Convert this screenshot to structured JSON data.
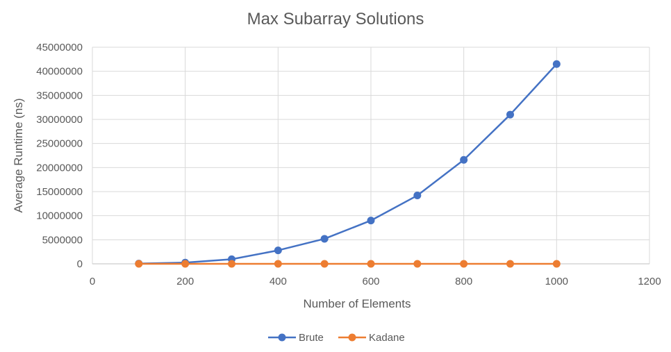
{
  "chart_data": {
    "type": "scatter",
    "title": "Max Subarray Solutions",
    "xlabel": "Number of Elements",
    "ylabel": "Average Runtime (ns)",
    "xlim": [
      0,
      1200
    ],
    "ylim": [
      0,
      45000000
    ],
    "x_ticks": [
      "0",
      "200",
      "400",
      "600",
      "800",
      "1000",
      "1200"
    ],
    "y_ticks": [
      "0",
      "5000000",
      "10000000",
      "15000000",
      "20000000",
      "25000000",
      "30000000",
      "35000000",
      "40000000",
      "45000000"
    ],
    "grid": true,
    "legend_position": "bottom",
    "series": [
      {
        "name": "Brute",
        "color": "#4472C4",
        "x": [
          100,
          200,
          300,
          400,
          500,
          600,
          700,
          800,
          900,
          1000
        ],
        "y": [
          50000,
          250000,
          950000,
          2800000,
          5200000,
          9000000,
          14200000,
          21600000,
          31000000,
          41500000
        ]
      },
      {
        "name": "Kadane",
        "color": "#ED7D31",
        "x": [
          100,
          200,
          300,
          400,
          500,
          600,
          700,
          800,
          900,
          1000
        ],
        "y": [
          5000,
          5000,
          5000,
          5000,
          5000,
          5000,
          5000,
          5000,
          5000,
          5000
        ]
      }
    ]
  }
}
